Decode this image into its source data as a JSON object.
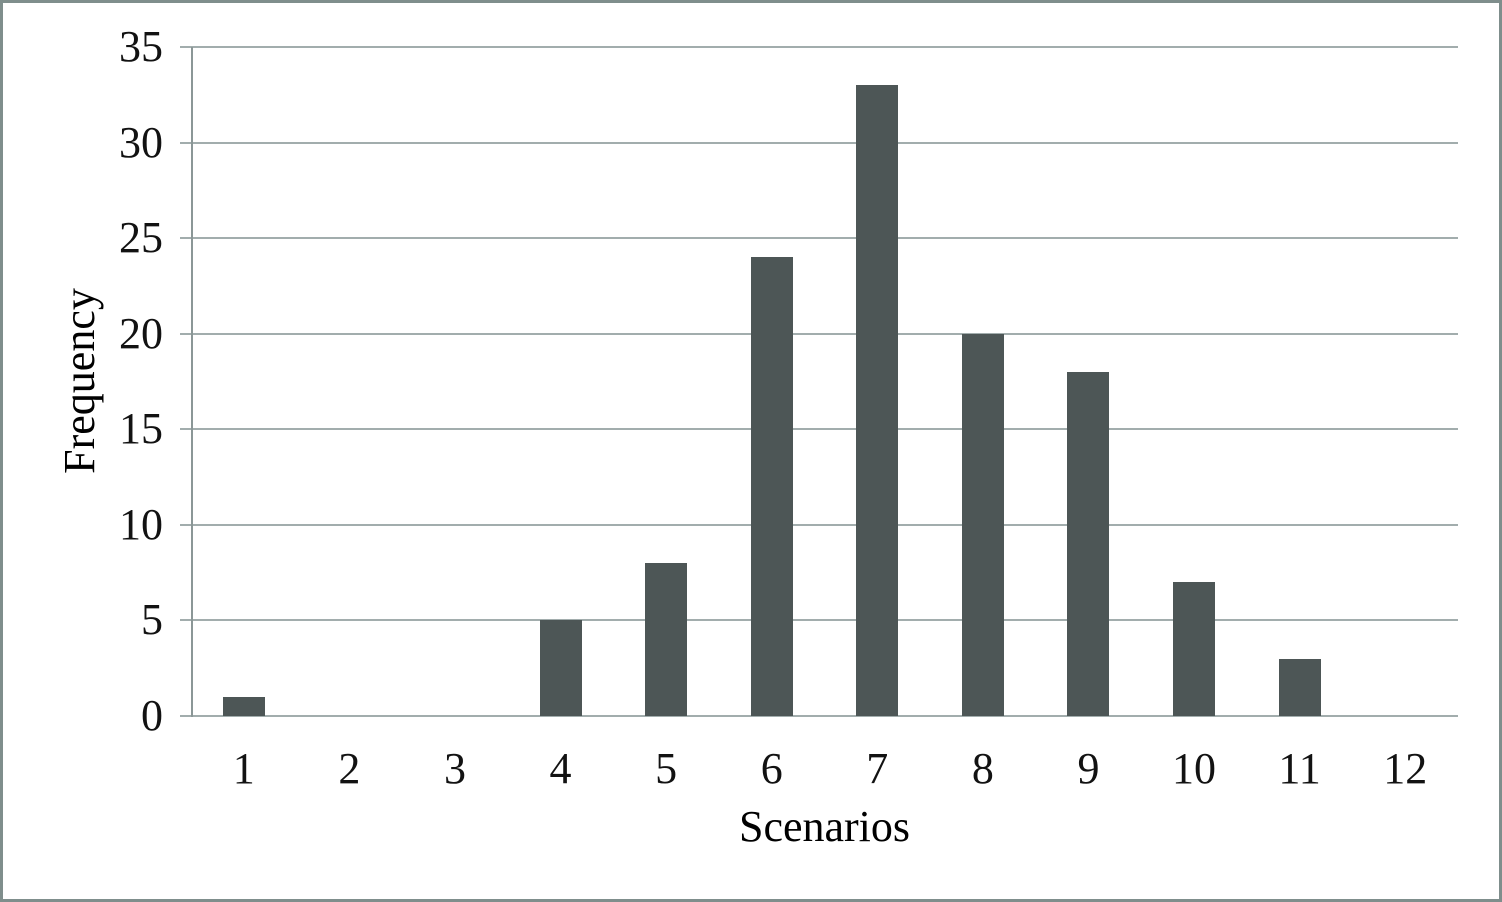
{
  "figure": {
    "background": "#ffffff",
    "border_color": "#7f8e8c"
  },
  "chart_data": {
    "type": "bar",
    "categories": [
      "1",
      "2",
      "3",
      "4",
      "5",
      "6",
      "7",
      "8",
      "9",
      "10",
      "11",
      "12"
    ],
    "values": [
      1,
      0,
      0,
      5,
      8,
      24,
      33,
      20,
      18,
      7,
      3,
      0
    ],
    "title": "",
    "xlabel": "Scenarios",
    "ylabel": "Frequency",
    "ylim": [
      0,
      35
    ],
    "yticks": [
      0,
      5,
      10,
      15,
      20,
      25,
      30,
      35
    ],
    "grid": "horizontal-only",
    "legend": "none",
    "bar_color": "#4d5656",
    "gridline_color": "#a2adad",
    "axis_color": "#8b9797",
    "label_color": "#121212"
  }
}
